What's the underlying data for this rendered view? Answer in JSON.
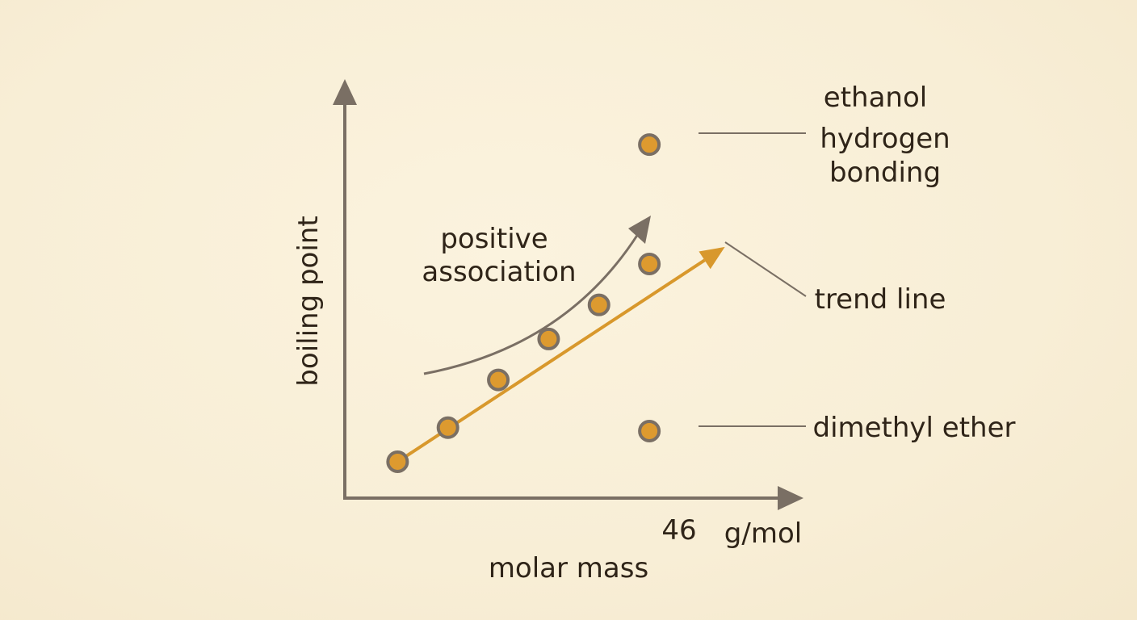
{
  "chart_data": {
    "type": "scatter",
    "xlabel": "molar mass",
    "ylabel": "boiling point",
    "x_tick_label": "46",
    "x_unit_label": "g/mol",
    "series": [
      {
        "points": [
          {
            "x": 22,
            "y": 1.5
          },
          {
            "x": 26,
            "y": 6.5
          },
          {
            "x": 30,
            "y": 13.5
          },
          {
            "x": 34,
            "y": 19.5
          },
          {
            "x": 38,
            "y": 24.5
          },
          {
            "x": 42,
            "y": 30.5
          }
        ]
      },
      {
        "points": [
          {
            "x": 42,
            "y": 48,
            "label": "ethanol"
          },
          {
            "x": 42,
            "y": 6,
            "label": "dimethyl ether"
          }
        ]
      }
    ],
    "trend_line": {
      "x0": 22,
      "y0": 1.5,
      "x1": 48,
      "y1": 33,
      "label": "trend line"
    },
    "xlim": [
      18,
      52
    ],
    "ylim": [
      -3,
      55
    ],
    "grid": false,
    "annotations": {
      "ethanol": [
        "ethanol",
        "hydrogen",
        "bonding"
      ],
      "trend": "trend line",
      "dimethyl": "dimethyl ether",
      "association": [
        "positive",
        "association"
      ]
    }
  },
  "colors": {
    "axis": "#7a6f64",
    "trend": "#d8982c",
    "point_fill": "#dd9a2f",
    "point_stroke": "#7a6f64",
    "text": "#2f2418",
    "background": "#f9f0da"
  }
}
